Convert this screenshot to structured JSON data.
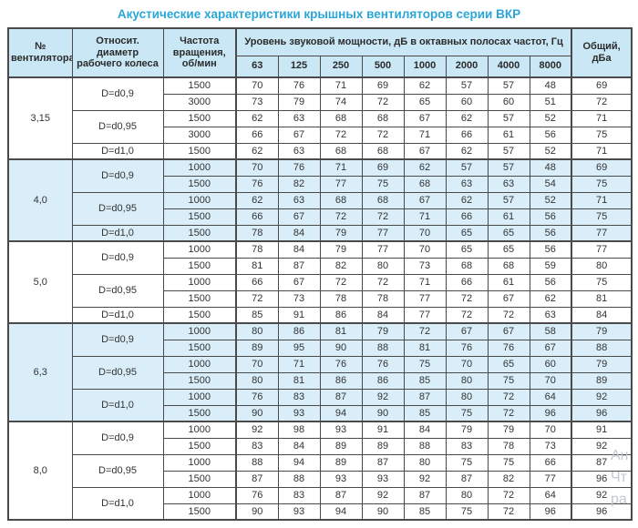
{
  "title": "Акустические характеристики крышных вентиляторов серии ВКР",
  "colors": {
    "title_text": "#2aa6d8",
    "header_bg": "#c9e7f5",
    "band_bg": "#d9eef9",
    "border": "#4a4a4a",
    "cell_text": "#333333"
  },
  "table": {
    "headers": {
      "fan": "№ вентилятора",
      "diameter": "Относит. диаметр рабочего колеса",
      "speed": "Частота вращения, об/мин",
      "spl": "Уровень звуковой мощности, дБ в октавных полосах частот, Гц",
      "freqs": [
        "63",
        "125",
        "250",
        "500",
        "1000",
        "2000",
        "4000",
        "8000"
      ],
      "total": "Общий, дБа"
    },
    "groups": [
      {
        "fan": "3,15",
        "shaded": false,
        "subgroups": [
          {
            "diameter": "D=d0,9",
            "rows": [
              {
                "speed": "1500",
                "values": [
                  70,
                  76,
                  71,
                  69,
                  62,
                  57,
                  57,
                  48
                ],
                "total": 69
              },
              {
                "speed": "3000",
                "values": [
                  73,
                  79,
                  74,
                  72,
                  65,
                  60,
                  60,
                  51
                ],
                "total": 72
              }
            ]
          },
          {
            "diameter": "D=d0,95",
            "rows": [
              {
                "speed": "1500",
                "values": [
                  62,
                  63,
                  68,
                  68,
                  67,
                  62,
                  57,
                  52
                ],
                "total": 71
              },
              {
                "speed": "3000",
                "values": [
                  66,
                  67,
                  72,
                  72,
                  71,
                  66,
                  61,
                  56
                ],
                "total": 75
              }
            ]
          },
          {
            "diameter": "D=d1,0",
            "rows": [
              {
                "speed": "1500",
                "values": [
                  62,
                  63,
                  68,
                  68,
                  67,
                  62,
                  57,
                  52
                ],
                "total": 71
              }
            ]
          }
        ]
      },
      {
        "fan": "4,0",
        "shaded": true,
        "subgroups": [
          {
            "diameter": "D=d0,9",
            "rows": [
              {
                "speed": "1000",
                "values": [
                  70,
                  76,
                  71,
                  69,
                  62,
                  57,
                  57,
                  48
                ],
                "total": 69
              },
              {
                "speed": "1500",
                "values": [
                  76,
                  82,
                  77,
                  75,
                  68,
                  63,
                  63,
                  54
                ],
                "total": 75
              }
            ]
          },
          {
            "diameter": "D=d0,95",
            "rows": [
              {
                "speed": "1000",
                "values": [
                  62,
                  63,
                  68,
                  68,
                  67,
                  62,
                  57,
                  52
                ],
                "total": 71
              },
              {
                "speed": "1500",
                "values": [
                  66,
                  67,
                  72,
                  72,
                  71,
                  66,
                  61,
                  56
                ],
                "total": 75
              }
            ]
          },
          {
            "diameter": "D=d1,0",
            "rows": [
              {
                "speed": "1500",
                "values": [
                  78,
                  84,
                  79,
                  77,
                  70,
                  65,
                  65,
                  56
                ],
                "total": 77
              }
            ]
          }
        ]
      },
      {
        "fan": "5,0",
        "shaded": false,
        "subgroups": [
          {
            "diameter": "D=d0,9",
            "rows": [
              {
                "speed": "1000",
                "values": [
                  78,
                  84,
                  79,
                  77,
                  70,
                  65,
                  65,
                  56
                ],
                "total": 77
              },
              {
                "speed": "1500",
                "values": [
                  81,
                  87,
                  82,
                  80,
                  73,
                  68,
                  68,
                  59
                ],
                "total": 80
              }
            ]
          },
          {
            "diameter": "D=d0,95",
            "rows": [
              {
                "speed": "1000",
                "values": [
                  66,
                  67,
                  72,
                  72,
                  71,
                  66,
                  61,
                  56
                ],
                "total": 75
              },
              {
                "speed": "1500",
                "values": [
                  72,
                  73,
                  78,
                  78,
                  77,
                  72,
                  67,
                  62
                ],
                "total": 81
              }
            ]
          },
          {
            "diameter": "D=d1,0",
            "rows": [
              {
                "speed": "1500",
                "values": [
                  85,
                  91,
                  86,
                  84,
                  77,
                  72,
                  72,
                  63
                ],
                "total": 84
              }
            ]
          }
        ]
      },
      {
        "fan": "6,3",
        "shaded": true,
        "subgroups": [
          {
            "diameter": "D=d0,9",
            "rows": [
              {
                "speed": "1000",
                "values": [
                  80,
                  86,
                  81,
                  79,
                  72,
                  67,
                  67,
                  58
                ],
                "total": 79
              },
              {
                "speed": "1500",
                "values": [
                  89,
                  95,
                  90,
                  88,
                  81,
                  76,
                  76,
                  67
                ],
                "total": 88
              }
            ]
          },
          {
            "diameter": "D=d0,95",
            "rows": [
              {
                "speed": "1000",
                "values": [
                  70,
                  71,
                  76,
                  76,
                  75,
                  70,
                  65,
                  60
                ],
                "total": 79
              },
              {
                "speed": "1500",
                "values": [
                  80,
                  81,
                  86,
                  86,
                  85,
                  80,
                  75,
                  70
                ],
                "total": 89
              }
            ]
          },
          {
            "diameter": "D=d1,0",
            "rows": [
              {
                "speed": "1000",
                "values": [
                  76,
                  83,
                  87,
                  92,
                  87,
                  80,
                  72,
                  64
                ],
                "total": 92
              },
              {
                "speed": "1500",
                "values": [
                  90,
                  93,
                  94,
                  90,
                  85,
                  75,
                  72,
                  96
                ],
                "total": 96
              }
            ]
          }
        ]
      },
      {
        "fan": "8,0",
        "shaded": false,
        "subgroups": [
          {
            "diameter": "D=d0,9",
            "rows": [
              {
                "speed": "1000",
                "values": [
                  92,
                  98,
                  93,
                  91,
                  84,
                  79,
                  79,
                  70
                ],
                "total": 91
              },
              {
                "speed": "1500",
                "values": [
                  83,
                  84,
                  89,
                  89,
                  88,
                  83,
                  78,
                  73
                ],
                "total": 92
              }
            ]
          },
          {
            "diameter": "D=d0,95",
            "rows": [
              {
                "speed": "1000",
                "values": [
                  88,
                  94,
                  89,
                  87,
                  80,
                  75,
                  75,
                  66
                ],
                "total": 87
              },
              {
                "speed": "1500",
                "values": [
                  87,
                  88,
                  93,
                  93,
                  92,
                  87,
                  82,
                  77
                ],
                "total": 96
              }
            ]
          },
          {
            "diameter": "D=d1,0",
            "rows": [
              {
                "speed": "1000",
                "values": [
                  76,
                  83,
                  87,
                  92,
                  87,
                  80,
                  72,
                  64
                ],
                "total": 92
              },
              {
                "speed": "1500",
                "values": [
                  90,
                  93,
                  94,
                  90,
                  85,
                  75,
                  72,
                  96
                ],
                "total": 96
              }
            ]
          }
        ]
      }
    ]
  },
  "watermark": {
    "lines": [
      "Ан",
      "Чт",
      "ра"
    ]
  }
}
